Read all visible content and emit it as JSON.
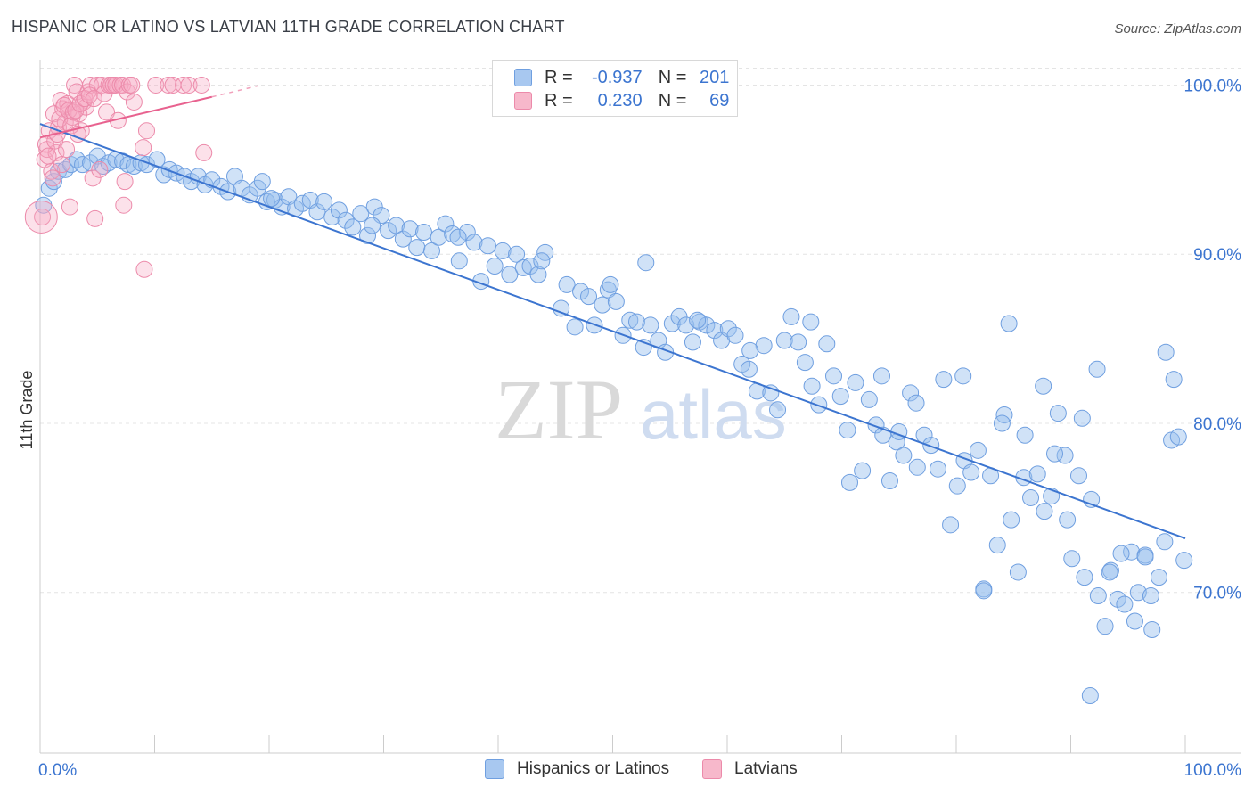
{
  "title": "HISPANIC OR LATINO VS LATVIAN 11TH GRADE CORRELATION CHART",
  "source": "Source: ZipAtlas.com",
  "watermark_zip": "ZIP",
  "watermark_atlas": "atlas",
  "legend": {
    "rows": [
      {
        "r_label": "R =",
        "r_value": "-0.937",
        "n_label": "N =",
        "n_value": "201",
        "color": "#a8c8f0",
        "border": "#6f9fe0"
      },
      {
        "r_label": "R =",
        "r_value": "0.230",
        "n_label": "N =",
        "n_value": "69",
        "color": "#f7b8cb",
        "border": "#ec8aaa"
      }
    ]
  },
  "bottom_legend": [
    {
      "label": "Hispanics or Latinos",
      "color": "#a8c8f0",
      "border": "#6f9fe0"
    },
    {
      "label": "Latvians",
      "color": "#f7b8cb",
      "border": "#ec8aaa"
    }
  ],
  "colors": {
    "blue": "#3c75d0",
    "blue_fill": "rgba(150,190,238,0.45)",
    "blue_stroke": "#6f9fe0",
    "pink": "#e8628f",
    "pink_fill": "rgba(245,170,195,0.35)",
    "pink_stroke": "#ec8aaa",
    "grid": "#e4e4e4",
    "axis_text": "#3c75d0"
  },
  "chart_data": {
    "type": "scatter",
    "title": "HISPANIC OR LATINO VS LATVIAN 11TH GRADE CORRELATION CHART",
    "xlabel": "",
    "ylabel": "11th Grade",
    "xlim": [
      0,
      100
    ],
    "ylim": [
      60.5,
      101.5
    ],
    "x_tick_labels": [
      "0.0%",
      "100.0%"
    ],
    "y_ticks": [
      70,
      80,
      90,
      100
    ],
    "y_tick_labels": [
      "70.0%",
      "80.0%",
      "90.0%",
      "100.0%"
    ],
    "series": [
      {
        "name": "Hispanics or Latinos",
        "trend": {
          "x0": 0,
          "y0": 97.7,
          "x1": 100,
          "y1": 73.2
        },
        "points": [
          [
            0.3,
            92.9
          ],
          [
            0.8,
            93.9
          ],
          [
            1.2,
            94.3
          ],
          [
            1.6,
            94.9
          ],
          [
            2.2,
            95.0
          ],
          [
            2.7,
            95.3
          ],
          [
            3.2,
            95.6
          ],
          [
            3.7,
            95.3
          ],
          [
            4.4,
            95.4
          ],
          [
            5.0,
            95.8
          ],
          [
            5.5,
            95.2
          ],
          [
            6.0,
            95.4
          ],
          [
            6.6,
            95.6
          ],
          [
            7.2,
            95.5
          ],
          [
            7.7,
            95.3
          ],
          [
            8.2,
            95.2
          ],
          [
            8.8,
            95.4
          ],
          [
            9.3,
            95.3
          ],
          [
            10.2,
            95.6
          ],
          [
            10.8,
            94.7
          ],
          [
            11.3,
            95.0
          ],
          [
            11.9,
            94.8
          ],
          [
            12.6,
            94.6
          ],
          [
            13.2,
            94.3
          ],
          [
            13.8,
            94.6
          ],
          [
            14.4,
            94.1
          ],
          [
            15.0,
            94.4
          ],
          [
            15.8,
            94.0
          ],
          [
            16.4,
            93.7
          ],
          [
            17.0,
            94.6
          ],
          [
            17.6,
            93.9
          ],
          [
            18.3,
            93.5
          ],
          [
            19.0,
            93.9
          ],
          [
            19.4,
            94.3
          ],
          [
            19.8,
            93.1
          ],
          [
            20.5,
            93.2
          ],
          [
            21.1,
            92.8
          ],
          [
            21.7,
            93.4
          ],
          [
            22.3,
            92.7
          ],
          [
            22.9,
            93.0
          ],
          [
            23.6,
            93.2
          ],
          [
            24.2,
            92.5
          ],
          [
            24.8,
            93.1
          ],
          [
            25.5,
            92.2
          ],
          [
            26.1,
            92.6
          ],
          [
            26.7,
            92.0
          ],
          [
            27.3,
            91.6
          ],
          [
            28.0,
            92.4
          ],
          [
            28.6,
            91.1
          ],
          [
            29.2,
            92.8
          ],
          [
            29.8,
            92.3
          ],
          [
            30.4,
            91.4
          ],
          [
            31.1,
            91.7
          ],
          [
            31.7,
            90.9
          ],
          [
            32.3,
            91.5
          ],
          [
            32.9,
            90.4
          ],
          [
            33.5,
            91.3
          ],
          [
            34.2,
            90.2
          ],
          [
            34.8,
            91.0
          ],
          [
            35.4,
            91.8
          ],
          [
            36.0,
            91.2
          ],
          [
            36.6,
            89.6
          ],
          [
            37.3,
            91.3
          ],
          [
            37.9,
            90.7
          ],
          [
            38.5,
            88.4
          ],
          [
            39.1,
            90.5
          ],
          [
            39.7,
            89.3
          ],
          [
            40.4,
            90.2
          ],
          [
            41.0,
            88.8
          ],
          [
            41.6,
            90.0
          ],
          [
            42.2,
            89.2
          ],
          [
            42.8,
            89.3
          ],
          [
            43.5,
            88.8
          ],
          [
            44.1,
            90.1
          ],
          [
            20.2,
            93.3
          ],
          [
            29.0,
            91.7
          ],
          [
            36.5,
            91.0
          ],
          [
            43.8,
            89.6
          ],
          [
            45.5,
            86.8
          ],
          [
            46.0,
            88.2
          ],
          [
            46.7,
            85.7
          ],
          [
            47.2,
            87.8
          ],
          [
            47.9,
            87.5
          ],
          [
            48.4,
            85.8
          ],
          [
            49.1,
            87.0
          ],
          [
            49.6,
            87.9
          ],
          [
            50.3,
            87.2
          ],
          [
            50.9,
            85.2
          ],
          [
            51.5,
            86.1
          ],
          [
            52.1,
            86.0
          ],
          [
            52.7,
            84.5
          ],
          [
            53.3,
            85.8
          ],
          [
            54.0,
            84.9
          ],
          [
            54.6,
            84.2
          ],
          [
            55.2,
            85.9
          ],
          [
            55.8,
            86.3
          ],
          [
            56.4,
            85.8
          ],
          [
            57.0,
            84.8
          ],
          [
            57.6,
            86.0
          ],
          [
            58.2,
            85.8
          ],
          [
            58.9,
            85.5
          ],
          [
            59.5,
            84.9
          ],
          [
            60.1,
            85.6
          ],
          [
            60.7,
            85.2
          ],
          [
            61.3,
            83.5
          ],
          [
            61.9,
            83.2
          ],
          [
            62.6,
            81.9
          ],
          [
            63.2,
            84.6
          ],
          [
            63.8,
            81.8
          ],
          [
            64.4,
            80.8
          ],
          [
            65.0,
            84.9
          ],
          [
            65.6,
            86.3
          ],
          [
            66.2,
            84.8
          ],
          [
            66.8,
            83.6
          ],
          [
            67.4,
            82.2
          ],
          [
            68.0,
            81.1
          ],
          [
            68.7,
            84.7
          ],
          [
            69.3,
            82.8
          ],
          [
            69.9,
            81.6
          ],
          [
            70.5,
            79.6
          ],
          [
            71.2,
            82.4
          ],
          [
            71.8,
            77.2
          ],
          [
            72.4,
            81.4
          ],
          [
            73.0,
            79.9
          ],
          [
            73.6,
            79.3
          ],
          [
            74.2,
            76.6
          ],
          [
            74.8,
            78.9
          ],
          [
            75.4,
            78.1
          ],
          [
            76.0,
            81.8
          ],
          [
            76.6,
            77.4
          ],
          [
            77.2,
            79.3
          ],
          [
            77.8,
            78.7
          ],
          [
            78.4,
            77.3
          ],
          [
            78.9,
            82.6
          ],
          [
            79.5,
            74.0
          ],
          [
            80.1,
            76.3
          ],
          [
            80.7,
            77.8
          ],
          [
            81.3,
            77.1
          ],
          [
            81.9,
            78.4
          ],
          [
            82.4,
            70.2
          ],
          [
            83.0,
            76.9
          ],
          [
            83.6,
            72.8
          ],
          [
            84.2,
            80.5
          ],
          [
            84.8,
            74.3
          ],
          [
            85.4,
            71.2
          ],
          [
            85.9,
            76.8
          ],
          [
            86.5,
            75.6
          ],
          [
            87.1,
            77.0
          ],
          [
            87.7,
            74.8
          ],
          [
            88.3,
            75.7
          ],
          [
            88.9,
            80.6
          ],
          [
            89.5,
            78.1
          ],
          [
            90.1,
            72.0
          ],
          [
            90.7,
            76.9
          ],
          [
            91.2,
            70.9
          ],
          [
            91.8,
            75.5
          ],
          [
            92.4,
            69.8
          ],
          [
            93.0,
            68.0
          ],
          [
            93.5,
            71.3
          ],
          [
            94.1,
            69.6
          ],
          [
            94.7,
            69.3
          ],
          [
            95.3,
            72.4
          ],
          [
            95.9,
            70.0
          ],
          [
            96.5,
            72.2
          ],
          [
            97.1,
            67.8
          ],
          [
            97.7,
            70.9
          ],
          [
            98.2,
            73.0
          ],
          [
            98.8,
            79.0
          ],
          [
            99.4,
            79.2
          ],
          [
            99.9,
            71.9
          ],
          [
            82.4,
            70.1
          ],
          [
            84.0,
            80.0
          ],
          [
            86.0,
            79.3
          ],
          [
            88.6,
            78.2
          ],
          [
            91.0,
            80.3
          ],
          [
            92.3,
            83.2
          ],
          [
            95.6,
            68.3
          ],
          [
            97.0,
            69.8
          ],
          [
            98.3,
            84.2
          ],
          [
            99.0,
            82.6
          ],
          [
            96.5,
            72.1
          ],
          [
            94.4,
            72.3
          ],
          [
            93.4,
            71.2
          ],
          [
            89.7,
            74.3
          ],
          [
            87.6,
            82.2
          ],
          [
            84.6,
            85.9
          ],
          [
            76.5,
            81.2
          ],
          [
            73.5,
            82.8
          ],
          [
            70.7,
            76.5
          ],
          [
            91.7,
            63.9
          ],
          [
            49.8,
            88.2
          ],
          [
            52.9,
            89.5
          ],
          [
            57.4,
            86.1
          ],
          [
            62.0,
            84.3
          ],
          [
            67.3,
            86.0
          ],
          [
            80.6,
            82.8
          ],
          [
            75.0,
            79.5
          ]
        ]
      },
      {
        "name": "Latvians",
        "trend": {
          "x0": 0,
          "y0": 96.9,
          "x1": 15,
          "y1": 99.3
        },
        "points": [
          [
            0.2,
            92.2
          ],
          [
            0.4,
            95.6
          ],
          [
            0.6,
            96.2
          ],
          [
            0.8,
            97.3
          ],
          [
            1.0,
            94.9
          ],
          [
            1.2,
            98.3
          ],
          [
            1.4,
            96.0
          ],
          [
            1.6,
            97.5
          ],
          [
            1.8,
            99.1
          ],
          [
            2.0,
            98.6
          ],
          [
            2.2,
            97.8
          ],
          [
            2.4,
            98.9
          ],
          [
            2.6,
            92.8
          ],
          [
            2.8,
            98.1
          ],
          [
            3.0,
            100.0
          ],
          [
            3.2,
            99.6
          ],
          [
            3.4,
            98.3
          ],
          [
            3.6,
            97.3
          ],
          [
            3.8,
            99.0
          ],
          [
            4.0,
            98.7
          ],
          [
            4.2,
            99.6
          ],
          [
            4.4,
            100.0
          ],
          [
            4.6,
            94.5
          ],
          [
            4.8,
            92.1
          ],
          [
            5.0,
            100.0
          ],
          [
            5.2,
            95.0
          ],
          [
            5.4,
            100.0
          ],
          [
            5.6,
            99.5
          ],
          [
            5.8,
            98.4
          ],
          [
            6.0,
            100.0
          ],
          [
            6.2,
            100.0
          ],
          [
            6.4,
            100.0
          ],
          [
            6.6,
            100.0
          ],
          [
            6.8,
            97.9
          ],
          [
            7.0,
            100.0
          ],
          [
            7.2,
            100.0
          ],
          [
            7.4,
            94.3
          ],
          [
            7.6,
            99.6
          ],
          [
            7.8,
            100.0
          ],
          [
            8.0,
            100.0
          ],
          [
            8.2,
            99.0
          ],
          [
            0.5,
            96.5
          ],
          [
            0.7,
            95.8
          ],
          [
            1.1,
            94.5
          ],
          [
            1.3,
            96.7
          ],
          [
            1.5,
            97.1
          ],
          [
            1.7,
            98.0
          ],
          [
            1.9,
            95.3
          ],
          [
            2.1,
            98.8
          ],
          [
            2.3,
            96.2
          ],
          [
            2.5,
            98.5
          ],
          [
            2.7,
            97.6
          ],
          [
            2.9,
            98.4
          ],
          [
            3.1,
            98.5
          ],
          [
            3.3,
            97.1
          ],
          [
            3.5,
            98.9
          ],
          [
            3.9,
            99.2
          ],
          [
            4.3,
            99.4
          ],
          [
            4.7,
            99.2
          ],
          [
            9.0,
            96.3
          ],
          [
            9.3,
            97.3
          ],
          [
            10.1,
            100.0
          ],
          [
            11.2,
            100.0
          ],
          [
            11.6,
            100.0
          ],
          [
            12.5,
            100.0
          ],
          [
            13.0,
            100.0
          ],
          [
            14.1,
            100.0
          ],
          [
            14.3,
            96.0
          ],
          [
            9.1,
            89.1
          ],
          [
            7.3,
            92.9
          ]
        ]
      }
    ]
  }
}
